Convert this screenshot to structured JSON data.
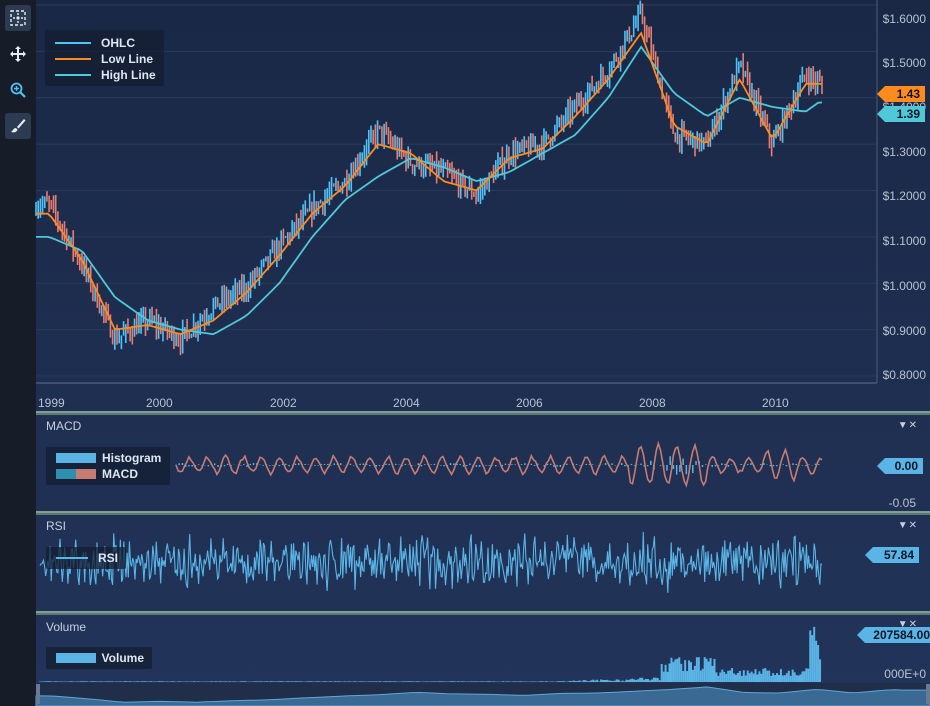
{
  "toolbar": {
    "items": [
      {
        "icon": "zoom-extents-icon"
      },
      {
        "icon": "pan-icon"
      },
      {
        "icon": "zoom-icon"
      },
      {
        "icon": "brush-icon"
      }
    ]
  },
  "colors": {
    "background": "#1c2a45",
    "ohlc_up": "#4fc3f7",
    "ohlc_down": "#e67e72",
    "low_line": "#ff8a1e",
    "high_line": "#4fc8d8",
    "macd_line": "#c77c72",
    "histogram": "#5ab4e6",
    "rsi": "#5ab4e6",
    "volume": "#5ab4e6",
    "separator": "#9ec7a6"
  },
  "price_pane": {
    "legend": [
      {
        "label": "OHLC"
      },
      {
        "label": "Low Line"
      },
      {
        "label": "High Line"
      }
    ],
    "y_ticks": [
      "$1.6000",
      "$1.5000",
      "$1.4000",
      "$1.3000",
      "$1.2000",
      "$1.1000",
      "$1.0000",
      "$0.9000",
      "$0.8000"
    ],
    "x_ticks": [
      "1999",
      "2000",
      "2002",
      "2004",
      "2006",
      "2008",
      "2010"
    ],
    "badges": {
      "low": "1.43",
      "high": "1.39"
    }
  },
  "macd_pane": {
    "title": "MACD",
    "legend": [
      {
        "label": "Histogram"
      },
      {
        "label": "MACD"
      }
    ],
    "y_ticks": [
      "-0.05"
    ],
    "badge": "0.00"
  },
  "rsi_pane": {
    "title": "RSI",
    "legend": [
      {
        "label": "RSI"
      }
    ],
    "badge": "57.84"
  },
  "volume_pane": {
    "title": "Volume",
    "legend": [
      {
        "label": "Volume"
      }
    ],
    "y_ticks": [
      "000E+0"
    ],
    "badge": "207584.00"
  },
  "chart_data": [
    {
      "type": "line",
      "title": "",
      "x_label": "",
      "y_label": "",
      "x": [
        1999.0,
        1999.5,
        2000.0,
        2000.5,
        2001.0,
        2001.5,
        2002.0,
        2002.5,
        2003.0,
        2003.5,
        2004.0,
        2004.5,
        2005.0,
        2005.5,
        2006.0,
        2006.5,
        2007.0,
        2007.5,
        2008.0,
        2008.5,
        2009.0,
        2009.5,
        2010.0,
        2010.5,
        2010.7
      ],
      "ylim": [
        0.8,
        1.6
      ],
      "series": [
        {
          "name": "OHLC",
          "values": [
            1.17,
            1.04,
            0.88,
            0.92,
            0.88,
            0.95,
            0.99,
            1.08,
            1.16,
            1.22,
            1.33,
            1.26,
            1.24,
            1.19,
            1.28,
            1.3,
            1.38,
            1.46,
            1.58,
            1.32,
            1.3,
            1.47,
            1.3,
            1.45,
            1.43
          ]
        },
        {
          "name": "Low Line",
          "values": [
            1.15,
            1.05,
            0.9,
            0.91,
            0.89,
            0.92,
            0.98,
            1.06,
            1.15,
            1.21,
            1.3,
            1.28,
            1.22,
            1.2,
            1.27,
            1.29,
            1.36,
            1.44,
            1.54,
            1.34,
            1.3,
            1.44,
            1.31,
            1.43,
            1.43
          ]
        },
        {
          "name": "High Line",
          "values": [
            1.1,
            1.07,
            0.97,
            0.92,
            0.9,
            0.89,
            0.93,
            1.0,
            1.1,
            1.18,
            1.23,
            1.27,
            1.25,
            1.22,
            1.24,
            1.28,
            1.32,
            1.4,
            1.51,
            1.41,
            1.36,
            1.4,
            1.38,
            1.37,
            1.39
          ]
        }
      ]
    },
    {
      "type": "line",
      "title": "MACD",
      "series": [
        {
          "name": "Histogram",
          "values": [
            0.0
          ]
        },
        {
          "name": "MACD",
          "values": [
            0.0
          ]
        }
      ]
    },
    {
      "type": "line",
      "title": "RSI",
      "series": [
        {
          "name": "RSI",
          "values": [
            57.84
          ]
        }
      ]
    },
    {
      "type": "bar",
      "title": "Volume",
      "series": [
        {
          "name": "Volume",
          "values": [
            207584.0
          ]
        }
      ]
    }
  ]
}
